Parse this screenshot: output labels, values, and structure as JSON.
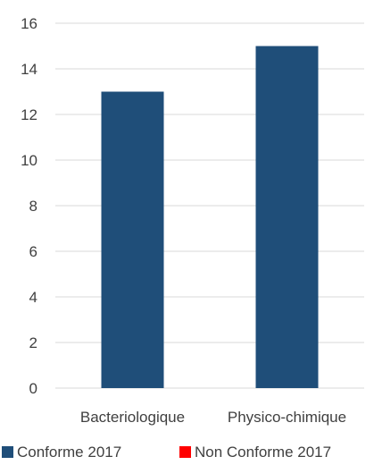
{
  "chart_data": {
    "type": "bar",
    "categories": [
      "Bacteriologique",
      "Physico-chimique"
    ],
    "series": [
      {
        "name": "Conforme 2017",
        "values": [
          13,
          15
        ],
        "color": "#1F4E79"
      },
      {
        "name": "Non Conforme 2017",
        "values": [
          0,
          0
        ],
        "color": "#FF0000"
      }
    ],
    "ylim": [
      0,
      16
    ],
    "yticks": [
      0,
      2,
      4,
      6,
      8,
      10,
      12,
      14,
      16
    ],
    "title": "",
    "xlabel": "",
    "ylabel": "",
    "grid": true,
    "legend_position": "bottom"
  }
}
